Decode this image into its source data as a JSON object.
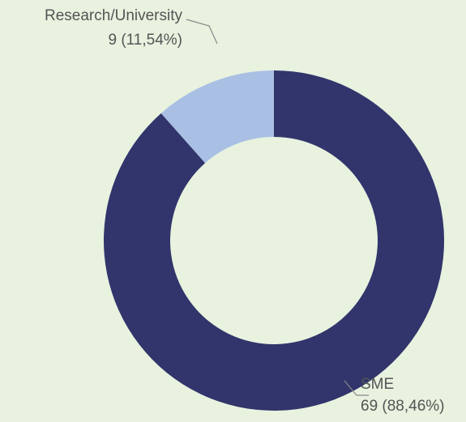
{
  "chart_data": {
    "type": "pie",
    "categories": [
      "SME",
      "Research/University"
    ],
    "values": [
      69,
      9
    ],
    "value_labels": [
      "69 (88,46%)",
      "9 (11,54%)"
    ],
    "colors": [
      "#31356b",
      "#a9c0e4"
    ],
    "donut": true
  }
}
